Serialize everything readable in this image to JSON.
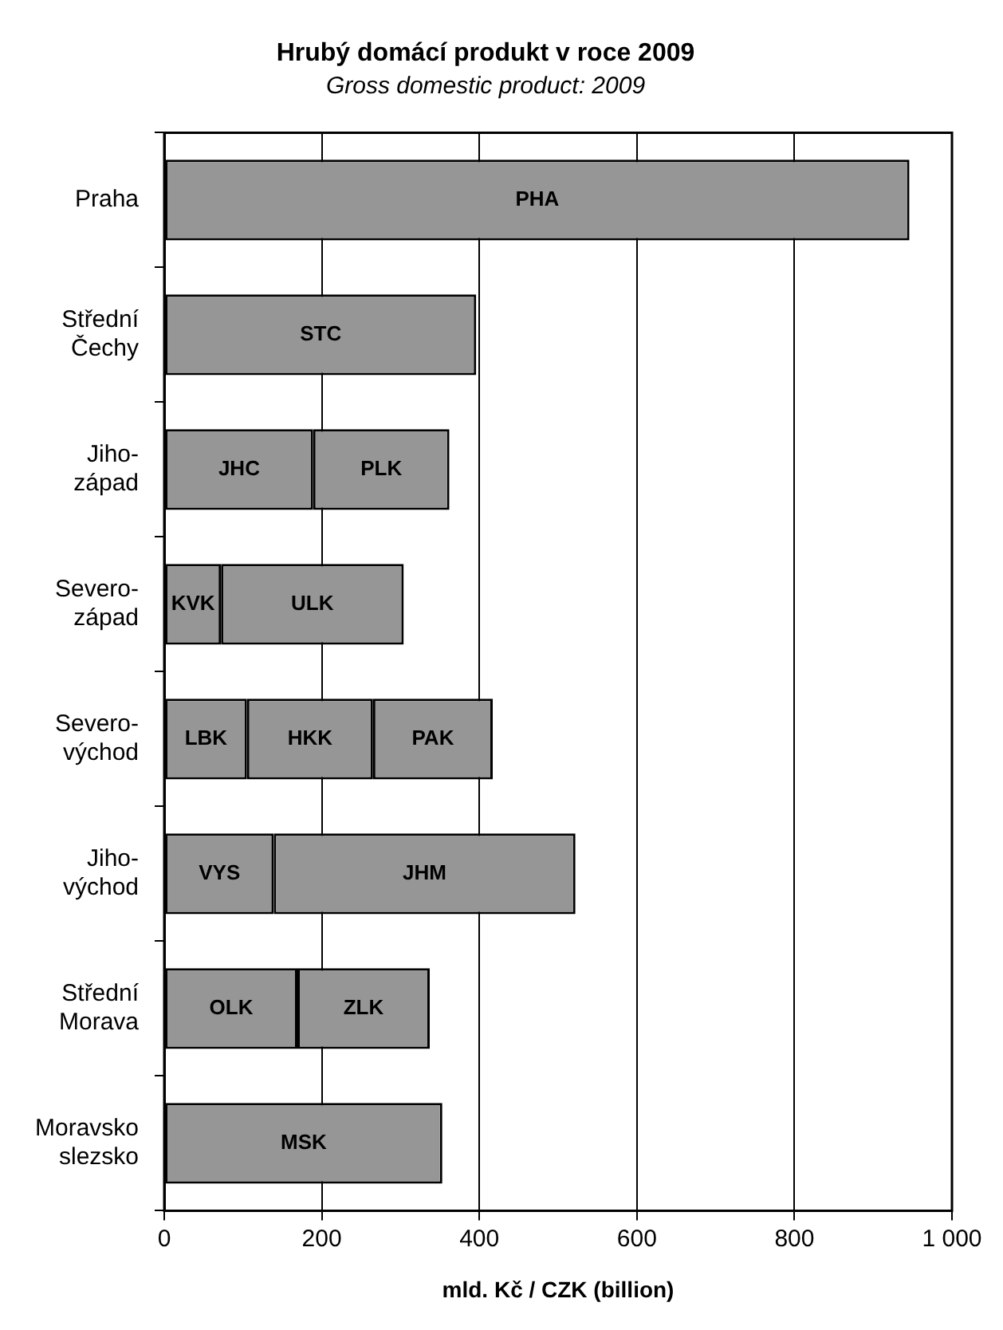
{
  "chart_data": {
    "type": "bar",
    "orientation": "horizontal",
    "stacked": true,
    "title": "Hrubý domácí produkt v roce 2009",
    "subtitle": "Gross domestic product: 2009",
    "xlabel": "mld. Kč / CZK (billion)",
    "categories": [
      "Praha",
      "Střední\nČechy",
      "Jiho-\nzápad",
      "Severo-\nzápad",
      "Severo-\nvýchod",
      "Jiho-\nvýchod",
      "Střední\nMorava",
      "Moravsko\nslezsko"
    ],
    "series": [
      {
        "color": "#969696",
        "values": [
          946,
          396,
          189,
          72,
          105,
          139,
          169,
          353
        ],
        "value_labels": [
          "PHA",
          "STC",
          "JHC",
          "KVK",
          "LBK",
          "VYS",
          "OLK",
          "MSK"
        ]
      },
      {
        "color": "#969696",
        "values": [
          null,
          null,
          173,
          232,
          160,
          383,
          168,
          null
        ],
        "value_labels": [
          null,
          null,
          "PLK",
          "ULK",
          "HKK",
          "JHM",
          "ZLK",
          null
        ]
      },
      {
        "color": "#969696",
        "values": [
          null,
          null,
          null,
          null,
          152,
          null,
          null,
          null
        ],
        "value_labels": [
          null,
          null,
          null,
          null,
          "PAK",
          null,
          null,
          null
        ]
      }
    ],
    "xlim": [
      0,
      1000
    ],
    "xticks": [
      0,
      200,
      400,
      600,
      800,
      {
        "value": 1000,
        "label": "1 000"
      }
    ],
    "grid": "x",
    "legend": false
  }
}
